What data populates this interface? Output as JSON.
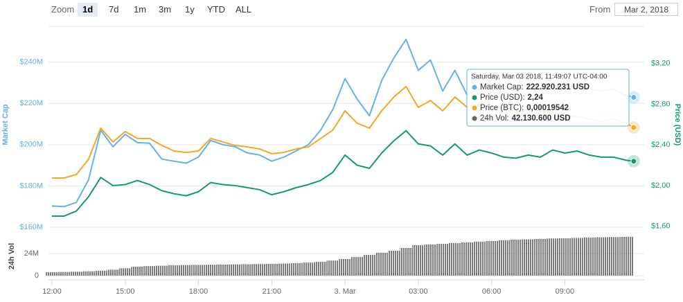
{
  "controls": {
    "zoom_label": "Zoom",
    "ranges": [
      "1d",
      "7d",
      "1m",
      "3m",
      "1y",
      "YTD",
      "ALL"
    ],
    "selected": 0,
    "from_label": "From",
    "from_value": "Mar 2, 2018"
  },
  "chart_data": {
    "type": "line",
    "x": [
      0,
      0.5,
      1,
      1.5,
      2,
      2.5,
      3,
      3.5,
      4,
      4.5,
      5,
      5.5,
      6,
      6.5,
      7,
      7.5,
      8,
      8.5,
      9,
      9.5,
      10,
      10.5,
      11,
      11.5,
      12,
      12.5,
      13,
      13.5,
      14,
      14.5,
      15,
      15.5,
      16,
      16.5,
      17,
      17.5,
      18,
      18.5,
      19,
      19.5,
      20,
      20.5,
      21,
      21.5,
      22,
      22.5,
      23,
      23.5,
      23.82
    ],
    "xlim": [
      -0.14,
      24.25
    ],
    "xticks": [
      {
        "value": 0,
        "label": "12:00"
      },
      {
        "value": 3,
        "label": "15:00"
      },
      {
        "value": 6,
        "label": "18:00"
      },
      {
        "value": 9,
        "label": "21:00"
      },
      {
        "value": 12,
        "label": "3. Mar"
      },
      {
        "value": 15,
        "label": "03:00"
      },
      {
        "value": 18,
        "label": "06:00"
      },
      {
        "value": 21,
        "label": "09:00"
      }
    ],
    "y_label": "Market Cap",
    "ylim": [
      158000000,
      258000000
    ],
    "yticks": [
      {
        "value": 160000000,
        "label": "$160M"
      },
      {
        "value": 180000000,
        "label": "$180M"
      },
      {
        "value": 200000000,
        "label": "$200M"
      },
      {
        "value": 220000000,
        "label": "$220M"
      },
      {
        "value": 240000000,
        "label": "$240M"
      }
    ],
    "y2_label": "Price (USD)",
    "y2lim": [
      1.55,
      3.58
    ],
    "y2ticks": [
      {
        "value": 1.6,
        "label": "$1,60"
      },
      {
        "value": 2.0,
        "label": "$2,00"
      },
      {
        "value": 2.4,
        "label": "$2,40"
      },
      {
        "value": 2.8,
        "label": "$2,80"
      },
      {
        "value": 3.2,
        "label": "$3,20"
      }
    ],
    "y3lim": [
      0.00013,
      0.00026
    ],
    "vol_label": "24h Vol",
    "vlim": [
      0,
      43500000
    ],
    "vticks": [
      0,
      {
        "value": 24000000,
        "label": "24M"
      }
    ],
    "grid": true,
    "series": [
      {
        "type": "line",
        "axis": "y",
        "color": "#5fb3e6",
        "values": [
          170300000,
          170000000,
          172000000,
          183000000,
          207000000,
          199000000,
          205000000,
          201000000,
          200700000,
          193000000,
          192000000,
          191000000,
          194000000,
          202000000,
          200000000,
          199000000,
          196000000,
          195000000,
          192000000,
          194000000,
          197000000,
          200000000,
          207000000,
          217000000,
          232000000,
          222000000,
          214000000,
          231000000,
          242000000,
          251000000,
          236000000,
          241000000,
          226000000,
          236000000,
          224000000,
          227000000,
          229000000,
          227000000,
          226000000,
          229000000,
          227000000,
          230000000,
          227000000,
          229000000,
          227000000,
          226000000,
          227000000,
          224000000,
          222920231
        ]
      },
      {
        "type": "line",
        "axis": "y2",
        "color": "#119a6b",
        "values": [
          1.7,
          1.7,
          1.75,
          1.89,
          2.08,
          2.0,
          2.01,
          2.05,
          2.01,
          1.95,
          1.92,
          1.9,
          1.94,
          2.03,
          2.01,
          2.0,
          1.98,
          1.96,
          1.91,
          1.94,
          1.98,
          2.01,
          2.05,
          2.13,
          2.3,
          2.2,
          2.17,
          2.32,
          2.44,
          2.54,
          2.41,
          2.39,
          2.3,
          2.41,
          2.3,
          2.35,
          2.32,
          2.28,
          2.27,
          2.3,
          2.28,
          2.35,
          2.32,
          2.34,
          2.3,
          2.28,
          2.28,
          2.25,
          2.24
        ]
      },
      {
        "type": "line",
        "axis": "y3",
        "color": "#f5a623",
        "values": [
          0.0001636,
          0.0001636,
          0.0001658,
          0.0001754,
          0.000195,
          0.0001863,
          0.0001928,
          0.0001885,
          0.0001885,
          0.0001841,
          0.0001806,
          0.0001797,
          0.0001806,
          0.0001885,
          0.0001863,
          0.0001841,
          0.0001832,
          0.0001819,
          0.0001789,
          0.0001797,
          0.0001819,
          0.0001832,
          0.0001885,
          0.0001937,
          0.0002059,
          0.0001981,
          0.000195,
          0.0002059,
          0.0002146,
          0.0002212,
          0.0002081,
          0.0002124,
          0.0002059,
          0.0002146,
          0.0002081,
          0.0002103,
          0.0002081,
          0.0002068,
          0.000205,
          0.0002059,
          0.0002037,
          0.0002059,
          0.0002024,
          0.0002024,
          0.0002007,
          0.0001994,
          0.0002007,
          0.0001981,
          0.00019542
        ]
      },
      {
        "type": "bar",
        "axis": "vol",
        "color": "#7a7a7a",
        "values": [
          3800000,
          4000000,
          4300000,
          4800000,
          5300000,
          6500000,
          8000000,
          9800000,
          10300000,
          10800000,
          11300000,
          11500000,
          11700000,
          11800000,
          12000000,
          12200000,
          12400000,
          12600000,
          12800000,
          13100000,
          13500000,
          14200000,
          15000000,
          16400000,
          18000000,
          20200000,
          22500000,
          24800000,
          27000000,
          30000000,
          33000000,
          33800000,
          34500000,
          35300000,
          36000000,
          36800000,
          37500000,
          38300000,
          39000000,
          39400000,
          39800000,
          40200000,
          40500000,
          40900000,
          41300000,
          41600000,
          41800000,
          42000000,
          42130600
        ]
      }
    ],
    "tooltip": {
      "header": "Saturday, Mar 03 2018, 11:49:07 UTC-04:00",
      "items": [
        {
          "label": "Market Cap:",
          "value": "222.920.231 USD"
        },
        {
          "label": "Price (USD):",
          "value": "2,24"
        },
        {
          "label": "Price (BTC):",
          "value": "0,00019542"
        },
        {
          "label": "24h Vol:",
          "value": "42.130.600 USD"
        }
      ]
    }
  }
}
